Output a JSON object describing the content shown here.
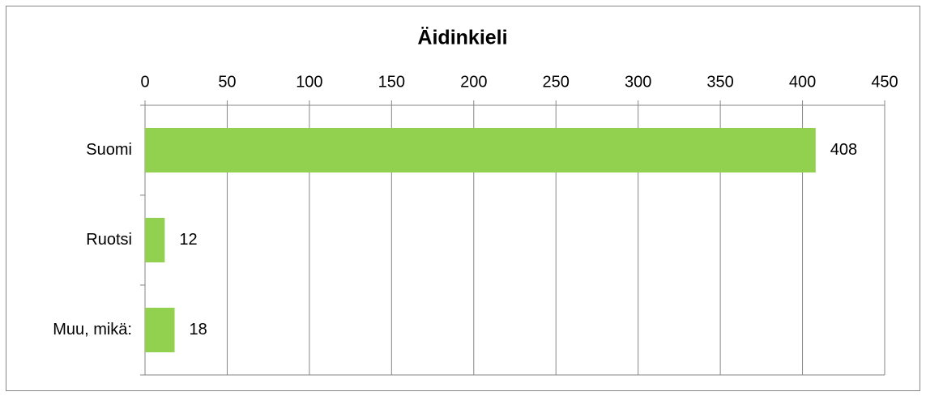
{
  "chart_data": {
    "type": "bar",
    "orientation": "horizontal",
    "title": "Äidinkieli",
    "categories": [
      "Suomi",
      "Ruotsi",
      "Muu, mikä:"
    ],
    "values": [
      408,
      12,
      18
    ],
    "color": "#92d050",
    "xlim": [
      0,
      450
    ],
    "xticks": [
      0,
      50,
      100,
      150,
      200,
      250,
      300,
      350,
      400,
      450
    ],
    "grid": true
  }
}
